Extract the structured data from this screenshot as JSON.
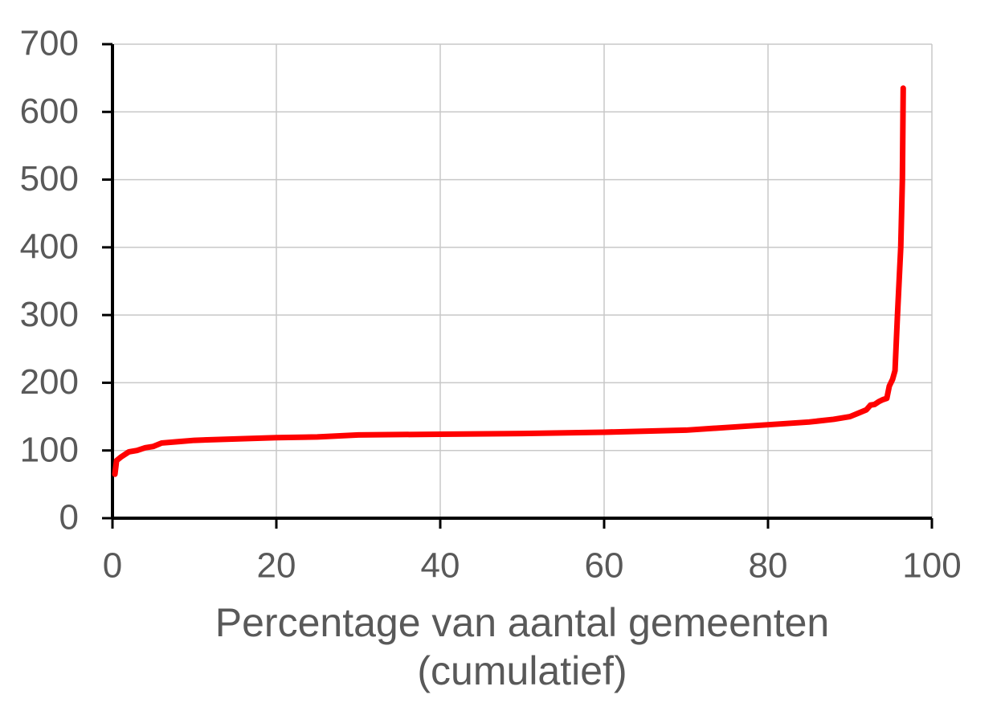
{
  "chart_data": {
    "type": "line",
    "x_label": "Percentage van aantal gemeenten (cumulatief)",
    "x": [
      0.3,
      0.5,
      1,
      2,
      3,
      4,
      5,
      6,
      8,
      10,
      15,
      20,
      25,
      30,
      40,
      50,
      60,
      70,
      75,
      80,
      85,
      88,
      90,
      91,
      92,
      92.5,
      93,
      93.5,
      94,
      94.5,
      94.8,
      95.2,
      95.5,
      95.8,
      96.2,
      96.4,
      96.5
    ],
    "series": [
      {
        "color": "#ff0000",
        "values": [
          65,
          85,
          90,
          98,
          100,
          104,
          106,
          111,
          113,
          115,
          117,
          119,
          120,
          123,
          124,
          125,
          127,
          130,
          134,
          138,
          142,
          146,
          150,
          155,
          160,
          167,
          168,
          172,
          175,
          177,
          195,
          205,
          218,
          300,
          400,
          500,
          635
        ]
      }
    ],
    "xlim": [
      0,
      100
    ],
    "xticks": [
      0,
      20,
      40,
      60,
      80,
      100
    ],
    "ylim": [
      0,
      700
    ],
    "yticks": [
      0,
      100,
      200,
      300,
      400,
      500,
      600,
      700
    ],
    "grid": true
  }
}
